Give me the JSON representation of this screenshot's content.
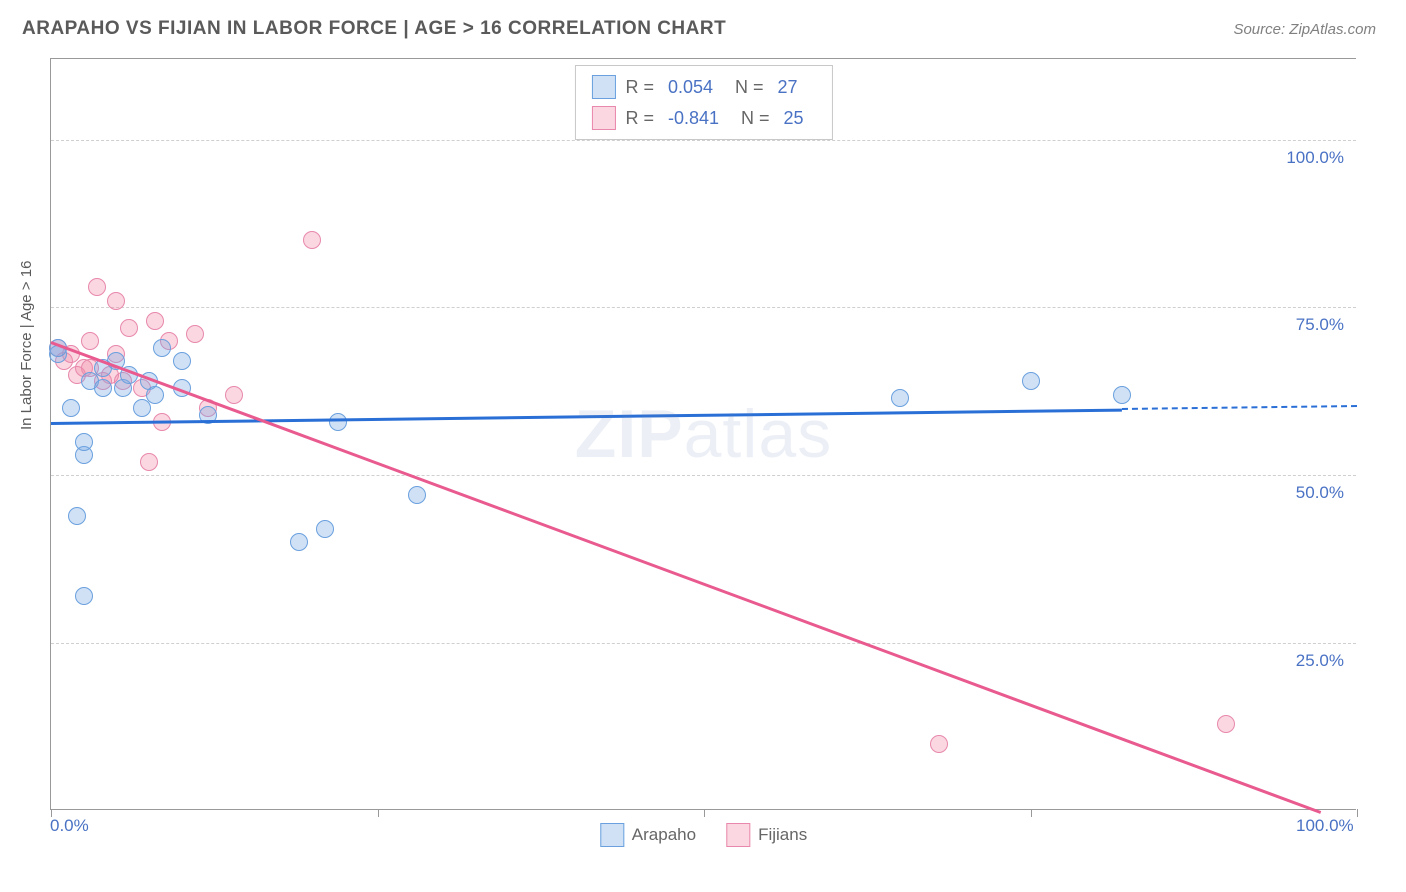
{
  "title": "ARAPAHO VS FIJIAN IN LABOR FORCE | AGE > 16 CORRELATION CHART",
  "source": "Source: ZipAtlas.com",
  "ylabel": "In Labor Force | Age > 16",
  "watermark_bold": "ZIP",
  "watermark_light": "atlas",
  "colors": {
    "arapaho_fill": "rgba(120,170,230,0.35)",
    "arapaho_stroke": "#6aa0de",
    "fijian_fill": "rgba(240,140,170,0.35)",
    "fijian_stroke": "#e888ac",
    "arapaho_line": "#2a6fd6",
    "fijian_line": "#e95a8f",
    "tick_label": "#4a72c4"
  },
  "chart": {
    "type": "scatter",
    "xlim": [
      0,
      100
    ],
    "ylim": [
      0,
      112
    ],
    "y_gridlines": [
      25,
      50,
      75,
      100
    ],
    "y_tick_labels": [
      "25.0%",
      "50.0%",
      "75.0%",
      "100.0%"
    ],
    "x_ticks": [
      0,
      25,
      50,
      75,
      100
    ],
    "x_tick_labels_shown": {
      "0": "0.0%",
      "100": "100.0%"
    },
    "point_radius": 9
  },
  "legend_top": [
    {
      "swatch_fill": "rgba(120,170,230,0.35)",
      "swatch_stroke": "#6aa0de",
      "r_label": "R =",
      "r_val": "0.054",
      "n_label": "N =",
      "n_val": "27"
    },
    {
      "swatch_fill": "rgba(240,140,170,0.35)",
      "swatch_stroke": "#e888ac",
      "r_label": "R =",
      "r_val": "-0.841",
      "n_label": "N =",
      "n_val": "25"
    }
  ],
  "legend_bottom": [
    {
      "swatch_fill": "rgba(120,170,230,0.35)",
      "swatch_stroke": "#6aa0de",
      "label": "Arapaho"
    },
    {
      "swatch_fill": "rgba(240,140,170,0.35)",
      "swatch_stroke": "#e888ac",
      "label": "Fijians"
    }
  ],
  "series": {
    "arapaho": {
      "points": [
        {
          "x": 0.5,
          "y": 68
        },
        {
          "x": 0.5,
          "y": 69
        },
        {
          "x": 1.5,
          "y": 60
        },
        {
          "x": 2,
          "y": 44
        },
        {
          "x": 2.5,
          "y": 32
        },
        {
          "x": 2.5,
          "y": 53
        },
        {
          "x": 2.5,
          "y": 55
        },
        {
          "x": 3,
          "y": 64
        },
        {
          "x": 4,
          "y": 63
        },
        {
          "x": 4,
          "y": 66
        },
        {
          "x": 5,
          "y": 67
        },
        {
          "x": 5.5,
          "y": 63
        },
        {
          "x": 6,
          "y": 65
        },
        {
          "x": 7,
          "y": 60
        },
        {
          "x": 7.5,
          "y": 64
        },
        {
          "x": 8,
          "y": 62
        },
        {
          "x": 8.5,
          "y": 69
        },
        {
          "x": 10,
          "y": 63
        },
        {
          "x": 10,
          "y": 67
        },
        {
          "x": 12,
          "y": 59
        },
        {
          "x": 19,
          "y": 40
        },
        {
          "x": 21,
          "y": 42
        },
        {
          "x": 22,
          "y": 58
        },
        {
          "x": 28,
          "y": 47
        },
        {
          "x": 65,
          "y": 61.5
        },
        {
          "x": 75,
          "y": 64
        },
        {
          "x": 82,
          "y": 62
        }
      ],
      "trend": {
        "x1": 0,
        "y1": 58,
        "x2": 82,
        "y2": 60,
        "dash_to_x": 100
      }
    },
    "fijian": {
      "points": [
        {
          "x": 0.5,
          "y": 69
        },
        {
          "x": 1,
          "y": 67
        },
        {
          "x": 1.5,
          "y": 68
        },
        {
          "x": 2,
          "y": 65
        },
        {
          "x": 2.5,
          "y": 66
        },
        {
          "x": 3,
          "y": 70
        },
        {
          "x": 3,
          "y": 66
        },
        {
          "x": 3.5,
          "y": 78
        },
        {
          "x": 4,
          "y": 64
        },
        {
          "x": 4.5,
          "y": 65
        },
        {
          "x": 5,
          "y": 76
        },
        {
          "x": 5,
          "y": 68
        },
        {
          "x": 5.5,
          "y": 64
        },
        {
          "x": 6,
          "y": 72
        },
        {
          "x": 7,
          "y": 63
        },
        {
          "x": 7.5,
          "y": 52
        },
        {
          "x": 8,
          "y": 73
        },
        {
          "x": 8.5,
          "y": 58
        },
        {
          "x": 9,
          "y": 70
        },
        {
          "x": 11,
          "y": 71
        },
        {
          "x": 12,
          "y": 60
        },
        {
          "x": 14,
          "y": 62
        },
        {
          "x": 20,
          "y": 85
        },
        {
          "x": 68,
          "y": 10
        },
        {
          "x": 90,
          "y": 13
        }
      ],
      "trend": {
        "x1": 0,
        "y1": 70,
        "x2": 100,
        "y2": -2,
        "dash_to_x": 100
      }
    }
  }
}
